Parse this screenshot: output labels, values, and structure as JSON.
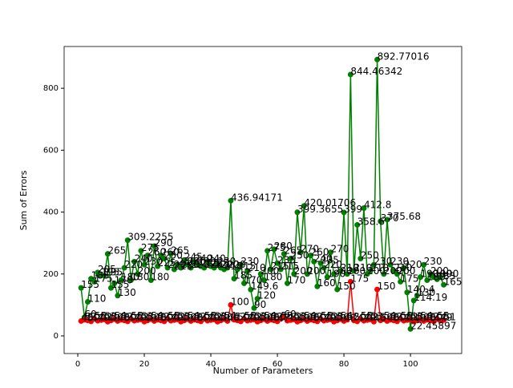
{
  "chart_data": {
    "type": "line",
    "xlabel": "Number of Parameters",
    "ylabel": "Sum of Errors",
    "xlim": [
      -4.1,
      115.4
    ],
    "ylim": [
      -57,
      935
    ],
    "xticks": [
      0,
      20,
      40,
      60,
      80,
      100
    ],
    "yticks": [
      0,
      200,
      400,
      600,
      800
    ],
    "x": [
      1,
      2,
      3,
      4,
      5,
      6,
      7,
      8,
      9,
      10,
      11,
      12,
      13,
      14,
      15,
      16,
      17,
      18,
      19,
      20,
      21,
      22,
      23,
      24,
      25,
      26,
      27,
      28,
      29,
      30,
      31,
      32,
      33,
      34,
      35,
      36,
      37,
      38,
      39,
      40,
      41,
      42,
      43,
      44,
      45,
      46,
      47,
      48,
      49,
      50,
      51,
      52,
      53,
      54,
      55,
      56,
      57,
      58,
      59,
      60,
      61,
      62,
      63,
      64,
      65,
      66,
      67,
      68,
      69,
      70,
      71,
      72,
      73,
      74,
      75,
      76,
      77,
      78,
      79,
      80,
      81,
      82,
      83,
      84,
      85,
      86,
      87,
      88,
      89,
      90,
      91,
      92,
      93,
      94,
      95,
      96,
      97,
      98,
      99,
      100,
      101,
      102,
      103,
      104,
      105,
      106,
      107,
      108,
      109,
      110
    ],
    "series": [
      {
        "color": "#008000",
        "values": [
          155,
          60,
          110,
          185,
          175,
          205,
          195,
          195,
          265,
          155,
          170,
          130,
          180,
          220,
          309.2255,
          180,
          240,
          200,
          275,
          230,
          260,
          180,
          290,
          225,
          260,
          250,
          220,
          265,
          215,
          230,
          220,
          245,
          230,
          220,
          240,
          230,
          225,
          220,
          240,
          225,
          220,
          230,
          220,
          215,
          220,
          436.94171,
          185,
          215,
          230,
          170,
          210,
          149.6,
          90,
          120,
          200,
          180,
          275,
          215,
          280,
          235,
          215,
          265,
          170,
          250,
          200,
          399.3655,
          270,
          420.01706,
          200,
          260,
          240,
          160,
          235,
          220,
          190,
          270,
          200,
          150,
          210,
          399,
          200,
          844.46342,
          210,
          358.6,
          250,
          412.8,
          200,
          210,
          230,
          892.77016,
          370,
          200,
          375.68,
          230,
          210,
          200,
          175,
          220,
          140.4,
          22.45897,
          114.19,
          130,
          190,
          230,
          180,
          200,
          190,
          183,
          190,
          165
        ]
      },
      {
        "color": "#ff0000",
        "values": [
          48,
          52,
          50,
          47,
          55,
          49,
          51,
          53,
          46,
          50,
          54,
          48,
          52,
          50,
          47,
          55,
          49,
          51,
          53,
          46,
          50,
          54,
          48,
          52,
          50,
          47,
          55,
          49,
          51,
          53,
          46,
          50,
          54,
          48,
          52,
          50,
          47,
          55,
          49,
          51,
          53,
          46,
          50,
          54,
          48,
          100,
          52,
          50,
          47,
          55,
          49,
          51,
          53,
          46,
          50,
          54,
          48,
          52,
          50,
          47,
          55,
          60,
          49,
          51,
          53,
          46,
          50,
          54,
          48,
          52,
          50,
          47,
          55,
          49,
          51,
          53,
          46,
          50,
          54,
          48,
          52,
          175,
          50,
          47,
          55,
          49,
          51,
          53,
          46,
          150,
          50,
          54,
          48,
          52,
          50,
          47,
          55,
          49,
          51,
          53,
          46,
          50,
          54,
          48,
          52,
          50,
          47,
          55,
          49,
          51
        ]
      }
    ]
  }
}
